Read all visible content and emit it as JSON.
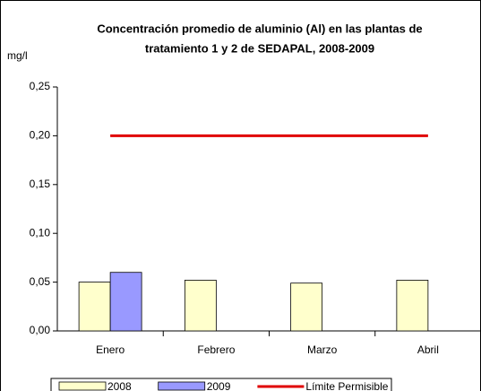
{
  "chart_data": {
    "type": "bar",
    "title": [
      "Concentración promedio de aluminio (Al) en las plantas de",
      "tratamiento 1 y 2 de SEDAPAL, 2008-2009"
    ],
    "y_label": "mg/l",
    "categories": [
      "Enero",
      "Febrero",
      "Marzo",
      "Abril"
    ],
    "series": [
      {
        "name": "2008",
        "color": "#ffffcc",
        "values": [
          0.05,
          0.052,
          0.049,
          0.052
        ]
      },
      {
        "name": "2009",
        "color": "#9999ff",
        "values": [
          0.06,
          null,
          null,
          null
        ]
      },
      {
        "name": "Límite Permisible",
        "type": "line",
        "color": "#e00000",
        "values": [
          0.2,
          0.2,
          0.2,
          0.2
        ]
      }
    ],
    "ylim": [
      0,
      0.25
    ],
    "yticks": [
      {
        "value": 0,
        "label": "0,00"
      },
      {
        "value": 0.05,
        "label": "0,05"
      },
      {
        "value": 0.1,
        "label": "0,10"
      },
      {
        "value": 0.15,
        "label": "0,15"
      },
      {
        "value": 0.2,
        "label": "0,20"
      },
      {
        "value": 0.25,
        "label": "0,25"
      }
    ],
    "legend": "bottom"
  }
}
